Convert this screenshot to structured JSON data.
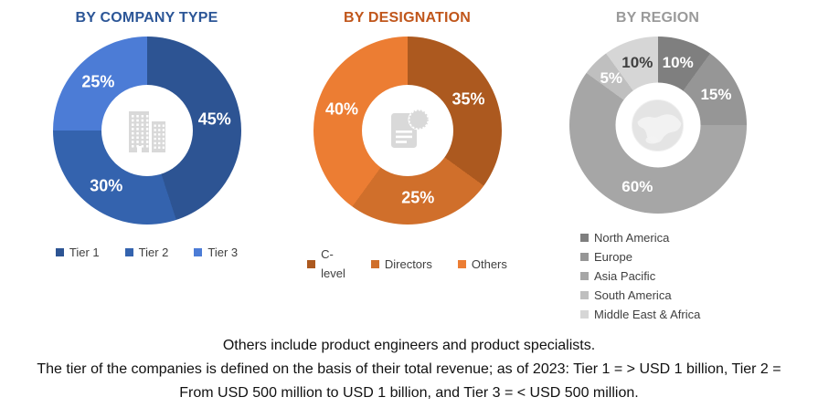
{
  "page": {
    "footnote_line1": "Others include product engineers and product specialists.",
    "footnote_line2": "The tier of the companies is defined on the basis of their total revenue; as of 2023: Tier 1 = > USD 1 billion, Tier 2 = From USD 500 million to USD 1 billion, and Tier 3 = < USD 500 million."
  },
  "chart_data": [
    {
      "type": "pie",
      "variant": "donut",
      "id": "by-company-type",
      "title": "BY COMPANY TYPE",
      "title_color": "#2C5697",
      "center_icon": "buildings-icon",
      "icon_color": "#D9D9D9",
      "legend_position": "bottom-horizontal",
      "start_angle_deg": 0,
      "direction": "clockwise",
      "categories": [
        "Tier 1",
        "Tier 2",
        "Tier 3"
      ],
      "values": [
        45,
        30,
        25
      ],
      "unit": "%",
      "labels": [
        "45%",
        "30%",
        "25%"
      ],
      "colors": [
        "#2D5493",
        "#3463AE",
        "#4C7CD6"
      ],
      "label_colors": [
        "#FFFFFF",
        "#FFFFFF",
        "#FFFFFF"
      ]
    },
    {
      "type": "pie",
      "variant": "donut",
      "id": "by-designation",
      "title": "BY DESIGNATION",
      "title_color": "#C0561B",
      "center_icon": "document-seal-icon",
      "icon_color": "#D9D9D9",
      "legend_position": "bottom-horizontal",
      "start_angle_deg": 0,
      "direction": "clockwise",
      "categories": [
        "C-level",
        "Directors",
        "Others"
      ],
      "values": [
        35,
        25,
        40
      ],
      "unit": "%",
      "labels": [
        "35%",
        "25%",
        "40%"
      ],
      "colors": [
        "#AC591F",
        "#D06F2B",
        "#EC7D33"
      ],
      "label_colors": [
        "#FFFFFF",
        "#FFFFFF",
        "#FFFFFF"
      ]
    },
    {
      "type": "pie",
      "variant": "donut",
      "id": "by-region",
      "title": "BY REGION",
      "title_color": "#9A9A9A",
      "center_icon": "globe-icon",
      "icon_color": "#E4E4E4",
      "legend_position": "bottom-vertical",
      "start_angle_deg": 0,
      "direction": "clockwise",
      "categories": [
        "North America",
        "Europe",
        "Asia Pacific",
        "South America",
        "Middle East & Africa"
      ],
      "values": [
        10,
        15,
        60,
        5,
        10
      ],
      "unit": "%",
      "labels": [
        "10%",
        "15%",
        "60%",
        "5%",
        "10%"
      ],
      "colors": [
        "#7F7F7F",
        "#969696",
        "#A6A6A6",
        "#BFBFBF",
        "#D6D6D6"
      ],
      "label_colors": [
        "#FFFFFF",
        "#FFFFFF",
        "#FFFFFF",
        "#FFFFFF",
        "#404040"
      ]
    }
  ]
}
